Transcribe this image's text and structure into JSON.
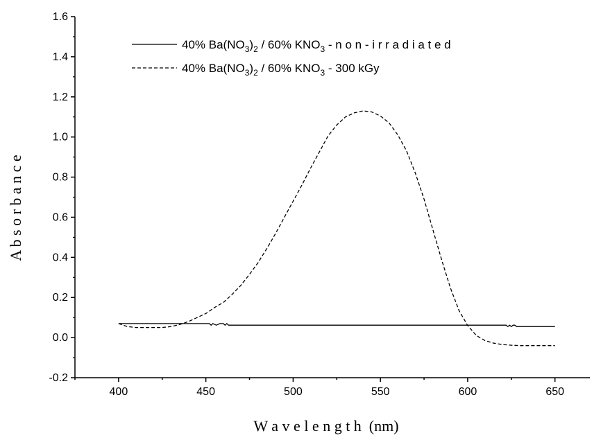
{
  "chart_data": {
    "type": "line",
    "title": "",
    "xlabel": "W a v e l e n g t h  (nm)",
    "ylabel": "A b s o r b a n c e",
    "xlim": [
      375,
      670
    ],
    "ylim": [
      -0.2,
      1.6
    ],
    "xticks": [
      400,
      450,
      500,
      550,
      600,
      650
    ],
    "xtick_labels": [
      "400",
      "450",
      "500",
      "550",
      "600",
      "650"
    ],
    "yticks": [
      -0.2,
      0.0,
      0.2,
      0.4,
      0.6,
      0.8,
      1.0,
      1.2,
      1.4,
      1.6
    ],
    "ytick_labels": [
      "-0.2",
      "0.0",
      "0.2",
      "0.4",
      "0.6",
      "0.8",
      "1.0",
      "1.2",
      "1.4",
      "1.6"
    ],
    "grid": false,
    "legend_position": "top",
    "series": [
      {
        "legend_parts": [
          "40% Ba(NO",
          "3",
          ")",
          "2",
          " / 60% KNO",
          "3",
          " - n o n - i r r a d i a t e d"
        ],
        "style": "solid",
        "color": "#000000",
        "x": [
          400,
          420,
          440,
          450,
          452,
          453,
          454,
          456,
          458,
          460,
          461,
          462,
          463,
          470,
          500,
          550,
          600,
          622,
          623,
          624,
          625,
          626,
          627,
          628,
          629,
          630,
          650
        ],
        "y": [
          0.07,
          0.07,
          0.07,
          0.07,
          0.07,
          0.062,
          0.07,
          0.062,
          0.07,
          0.07,
          0.062,
          0.07,
          0.062,
          0.062,
          0.062,
          0.062,
          0.062,
          0.062,
          0.055,
          0.062,
          0.055,
          0.062,
          0.062,
          0.055,
          0.055,
          0.055,
          0.055
        ]
      },
      {
        "legend_parts": [
          "40% Ba(NO",
          "3",
          ")",
          "2",
          " / 60% KNO",
          "3",
          " - 300 kGy"
        ],
        "style": "dashed",
        "color": "#000000",
        "x": [
          400,
          405,
          410,
          415,
          420,
          425,
          430,
          435,
          440,
          445,
          450,
          455,
          460,
          465,
          470,
          475,
          480,
          485,
          490,
          495,
          500,
          505,
          510,
          515,
          520,
          525,
          530,
          535,
          540,
          545,
          550,
          555,
          560,
          565,
          570,
          575,
          580,
          585,
          590,
          595,
          600,
          605,
          610,
          615,
          620,
          625,
          630,
          640,
          650
        ],
        "y": [
          0.07,
          0.055,
          0.05,
          0.05,
          0.05,
          0.05,
          0.055,
          0.065,
          0.08,
          0.1,
          0.12,
          0.15,
          0.175,
          0.215,
          0.26,
          0.315,
          0.375,
          0.445,
          0.52,
          0.6,
          0.68,
          0.76,
          0.845,
          0.925,
          1.005,
          1.06,
          1.1,
          1.12,
          1.13,
          1.125,
          1.105,
          1.07,
          1.01,
          0.93,
          0.82,
          0.69,
          0.54,
          0.39,
          0.25,
          0.135,
          0.06,
          0.01,
          -0.015,
          -0.028,
          -0.035,
          -0.038,
          -0.04,
          -0.04,
          -0.04
        ]
      }
    ]
  }
}
